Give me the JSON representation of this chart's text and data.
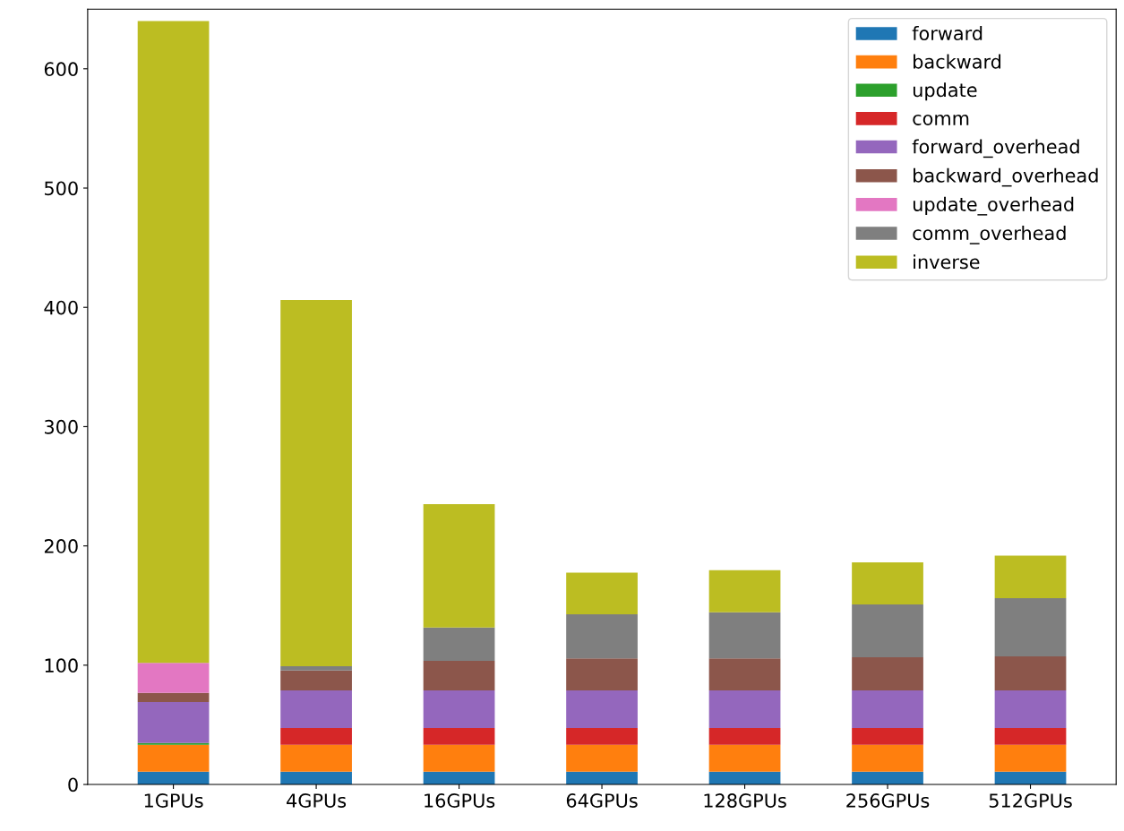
{
  "chart_data": {
    "type": "bar",
    "stacked": true,
    "categories": [
      "1GPUs",
      "4GPUs",
      "16GPUs",
      "64GPUs",
      "128GPUs",
      "256GPUs",
      "512GPUs"
    ],
    "series": [
      {
        "name": "forward",
        "color": "#1f77b4",
        "values": [
          10.7,
          10.7,
          10.7,
          10.7,
          10.7,
          10.7,
          10.7
        ]
      },
      {
        "name": "backward",
        "color": "#ff7f0e",
        "values": [
          22.5,
          22.5,
          22.5,
          22.5,
          22.5,
          22.5,
          22.5
        ]
      },
      {
        "name": "update",
        "color": "#2ca02c",
        "values": [
          1.5,
          0,
          0,
          0,
          0,
          0,
          0
        ]
      },
      {
        "name": "comm",
        "color": "#d62728",
        "values": [
          0,
          14.1,
          14.1,
          14.1,
          14.1,
          14.1,
          14.1
        ]
      },
      {
        "name": "forward_overhead",
        "color": "#9467bd",
        "values": [
          34.3,
          31.5,
          31.5,
          31.5,
          31.5,
          31.5,
          31.5
        ]
      },
      {
        "name": "backward_overhead",
        "color": "#8c564b",
        "values": [
          7.8,
          16.8,
          24.8,
          26.8,
          26.8,
          27.9,
          28.6
        ]
      },
      {
        "name": "update_overhead",
        "color": "#e377c2",
        "values": [
          25.2,
          0,
          0,
          0,
          0,
          0,
          0
        ]
      },
      {
        "name": "comm_overhead",
        "color": "#7f7f7f",
        "values": [
          0,
          3.5,
          28,
          37,
          38.8,
          44.3,
          48.8
        ]
      },
      {
        "name": "inverse",
        "color": "#bcbd22",
        "values": [
          538,
          307,
          103.4,
          35,
          35.3,
          35.2,
          35.6
        ]
      }
    ],
    "ylim": [
      0,
      650
    ],
    "yticks": [
      0,
      100,
      200,
      300,
      400,
      500,
      600
    ],
    "legend": "top right",
    "grid": false
  }
}
